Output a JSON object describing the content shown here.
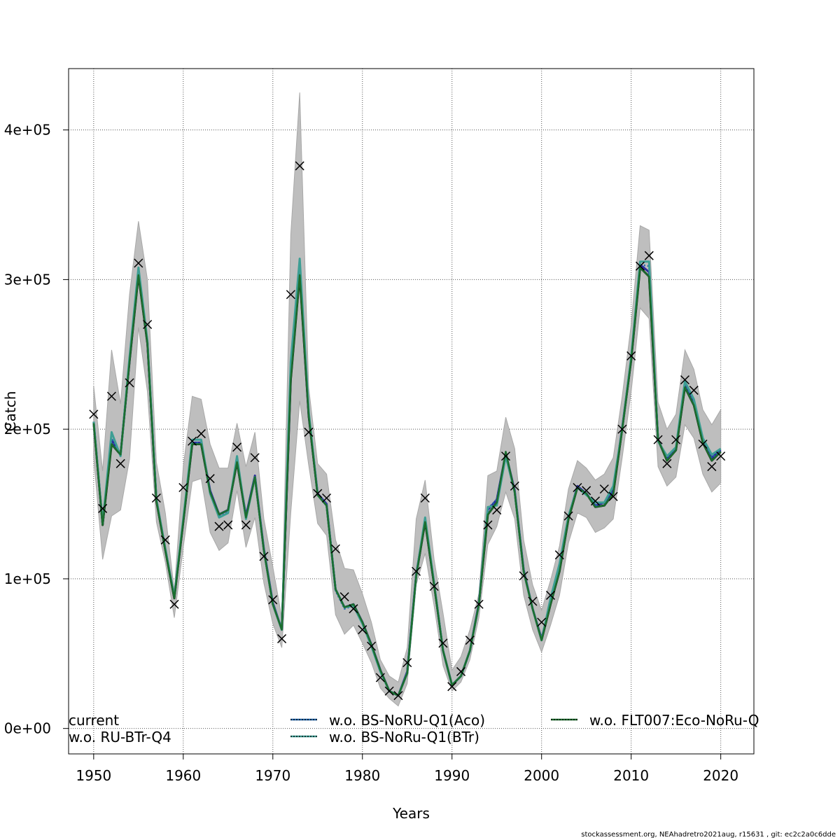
{
  "chart_data": {
    "type": "line",
    "xlabel": "Years",
    "ylabel": "Catch",
    "xlim": [
      1947.2,
      2023.7
    ],
    "ylim": [
      -17000,
      441000
    ],
    "x_ticks": [
      "1950",
      "1960",
      "1970",
      "1980",
      "1990",
      "2000",
      "2010",
      "2020"
    ],
    "y_ticks": [
      {
        "value": 0,
        "label": "0e+00"
      },
      {
        "value": 100000,
        "label": "1e+05"
      },
      {
        "value": 200000,
        "label": "2e+05"
      },
      {
        "value": 300000,
        "label": "3e+05"
      },
      {
        "value": 400000,
        "label": "4e+05"
      }
    ],
    "grid": true,
    "years": [
      1950,
      1951,
      1952,
      1953,
      1954,
      1955,
      1956,
      1957,
      1958,
      1959,
      1960,
      1961,
      1962,
      1963,
      1964,
      1965,
      1966,
      1967,
      1968,
      1969,
      1970,
      1971,
      1972,
      1973,
      1974,
      1975,
      1976,
      1977,
      1978,
      1979,
      1980,
      1981,
      1982,
      1983,
      1984,
      1985,
      1986,
      1987,
      1988,
      1989,
      1990,
      1991,
      1992,
      1993,
      1994,
      1995,
      1996,
      1997,
      1998,
      1999,
      2000,
      2001,
      2002,
      2003,
      2004,
      2005,
      2006,
      2007,
      2008,
      2009,
      2010,
      2011,
      2012,
      2013,
      2014,
      2015,
      2016,
      2017,
      2018,
      2019,
      2020
    ],
    "observed": [
      210000,
      147000,
      222000,
      177000,
      231000,
      311000,
      270000,
      154000,
      126000,
      83000,
      161000,
      192000,
      197000,
      167000,
      135000,
      136000,
      188000,
      136000,
      181000,
      115000,
      86000,
      60000,
      290000,
      376000,
      198000,
      157000,
      154000,
      120000,
      88000,
      80000,
      66000,
      55000,
      34000,
      25000,
      22000,
      44000,
      105000,
      154000,
      95000,
      57000,
      28000,
      38000,
      59000,
      83000,
      136000,
      146000,
      182000,
      162000,
      102000,
      85000,
      71000,
      89000,
      116000,
      142000,
      161000,
      159000,
      152000,
      160000,
      155000,
      200000,
      249000,
      309000,
      316000,
      193000,
      177000,
      193000,
      233000,
      226000,
      190000,
      175000,
      182000
    ],
    "band_upper": [
      229000,
      172000,
      253000,
      217000,
      290000,
      339000,
      300000,
      178000,
      144000,
      92000,
      175000,
      222000,
      220000,
      190000,
      174000,
      174000,
      204000,
      175000,
      198000,
      140000,
      108000,
      74000,
      330000,
      425000,
      228000,
      177000,
      170000,
      126000,
      107000,
      106000,
      90000,
      71000,
      46000,
      35000,
      31000,
      54000,
      140000,
      166000,
      113000,
      77000,
      39000,
      48000,
      66000,
      90000,
      169000,
      172000,
      208000,
      187000,
      126000,
      96000,
      79000,
      99000,
      122000,
      160000,
      179000,
      174000,
      166000,
      170000,
      181000,
      222000,
      270000,
      336000,
      333000,
      218000,
      200000,
      210000,
      253000,
      240000,
      213000,
      203000,
      213000
    ],
    "band_lower": [
      181000,
      113000,
      142000,
      146000,
      180000,
      268000,
      225000,
      138000,
      111000,
      74000,
      121000,
      165000,
      167000,
      131000,
      119000,
      124000,
      159000,
      121000,
      141000,
      97000,
      70000,
      54000,
      144000,
      219000,
      176000,
      137000,
      129000,
      76000,
      63000,
      69000,
      57000,
      44000,
      27000,
      20000,
      15000,
      30000,
      96000,
      117000,
      82000,
      42000,
      25000,
      31000,
      46000,
      74000,
      123000,
      135000,
      158000,
      140000,
      89000,
      66000,
      51000,
      69000,
      89000,
      124000,
      144000,
      141000,
      131000,
      134000,
      140000,
      181000,
      225000,
      281000,
      274000,
      175000,
      162000,
      168000,
      203000,
      194000,
      170000,
      158000,
      164000
    ],
    "series": [
      {
        "name": "current",
        "color": "#000000",
        "dash": "solid",
        "values": [
          204000,
          136000,
          190000,
          183000,
          245000,
          303000,
          257000,
          152000,
          119000,
          87000,
          138000,
          190000,
          190000,
          158000,
          143000,
          146000,
          178000,
          141000,
          168000,
          119000,
          83000,
          66000,
          233000,
          303000,
          209000,
          156000,
          149000,
          93000,
          81000,
          83000,
          71000,
          56000,
          39000,
          25000,
          22000,
          37000,
          102000,
          138000,
          96000,
          52000,
          29000,
          35000,
          52000,
          83000,
          143000,
          151000,
          183000,
          158000,
          105000,
          80000,
          59000,
          83000,
          105000,
          140000,
          161000,
          157000,
          148000,
          149000,
          157000,
          200000,
          246000,
          308000,
          302000,
          193000,
          179000,
          186000,
          228000,
          216000,
          191000,
          179000,
          185000
        ]
      },
      {
        "name": "w.o. RU-BTr-Q4",
        "color": "#2b2d9c",
        "dash": "solid",
        "values": [
          205000,
          137000,
          193000,
          183000,
          246000,
          305000,
          258000,
          153000,
          120000,
          88000,
          139000,
          191000,
          191000,
          159000,
          143000,
          146000,
          179000,
          142000,
          169000,
          120000,
          84000,
          66000,
          236000,
          306000,
          210000,
          157000,
          150000,
          93000,
          81000,
          83000,
          71000,
          56000,
          39000,
          25000,
          22000,
          38000,
          103000,
          139000,
          97000,
          52000,
          29000,
          35000,
          52000,
          84000,
          146000,
          153000,
          184000,
          159000,
          106000,
          80000,
          60000,
          84000,
          106000,
          141000,
          162000,
          157000,
          149000,
          151000,
          159000,
          201000,
          247000,
          310000,
          305000,
          193000,
          180000,
          187000,
          229000,
          218000,
          192000,
          181000,
          186000
        ]
      },
      {
        "name": "w.o. BS-NoRU-Q1(Aco)",
        "color": "#2166ac",
        "dash": "dotted",
        "values": [
          205000,
          136000,
          194000,
          182000,
          246000,
          306000,
          258000,
          153000,
          119000,
          88000,
          139000,
          191000,
          191000,
          158000,
          142000,
          145000,
          179000,
          141000,
          168000,
          119000,
          83000,
          66000,
          238000,
          309000,
          210000,
          156000,
          149000,
          92000,
          80000,
          82000,
          70000,
          55000,
          38000,
          25000,
          22000,
          37000,
          102000,
          139000,
          96000,
          52000,
          29000,
          35000,
          52000,
          83000,
          147000,
          153000,
          183000,
          158000,
          105000,
          80000,
          59000,
          84000,
          106000,
          141000,
          161000,
          157000,
          149000,
          151000,
          160000,
          200000,
          247000,
          310000,
          309000,
          192000,
          180000,
          186000,
          230000,
          218000,
          192000,
          181000,
          186000
        ]
      },
      {
        "name": "w.o. BS-NoRu-Q1(BTr)",
        "color": "#3d9e94",
        "dash": "solid",
        "values": [
          205000,
          137000,
          198000,
          182000,
          248000,
          308000,
          259000,
          153000,
          120000,
          88000,
          140000,
          193000,
          193000,
          157000,
          141000,
          144000,
          182000,
          140000,
          168000,
          119000,
          83000,
          66000,
          245000,
          314000,
          212000,
          156000,
          149000,
          93000,
          81000,
          82000,
          70000,
          55000,
          38000,
          25000,
          22000,
          37000,
          102000,
          141000,
          97000,
          52000,
          29000,
          35000,
          52000,
          83000,
          148000,
          149000,
          182000,
          158000,
          105000,
          80000,
          59000,
          87000,
          110000,
          142000,
          161000,
          156000,
          151000,
          151000,
          162000,
          200000,
          248000,
          312000,
          312000,
          192000,
          182000,
          188000,
          232000,
          220000,
          194000,
          183000,
          187000
        ]
      },
      {
        "name": "w.o. FLT007:Eco-NoRu-Q",
        "color": "#1b6e2e",
        "dash": "solid",
        "values": [
          204000,
          136000,
          190000,
          183000,
          245000,
          303000,
          257000,
          152000,
          119000,
          87000,
          138000,
          190000,
          190000,
          158000,
          143000,
          146000,
          178000,
          141000,
          168000,
          119000,
          83000,
          66000,
          233000,
          303000,
          209000,
          156000,
          149000,
          93000,
          81000,
          83000,
          71000,
          56000,
          39000,
          25000,
          22000,
          37000,
          102000,
          138000,
          96000,
          52000,
          29000,
          35000,
          52000,
          83000,
          143000,
          151000,
          185000,
          158000,
          105000,
          80000,
          59000,
          83000,
          105000,
          140000,
          161000,
          157000,
          148000,
          149000,
          157000,
          200000,
          246000,
          308000,
          302000,
          193000,
          179000,
          186000,
          228000,
          216000,
          191000,
          179000,
          185000
        ]
      }
    ],
    "legend": {
      "placement": "bottom",
      "columns": [
        [
          {
            "label": "current",
            "symbol": "none"
          },
          {
            "label": "w.o. RU-BTr-Q4",
            "symbol": "none"
          }
        ],
        [
          {
            "label": "w.o. BS-NoRU-Q1(Aco)",
            "symbol": "line"
          },
          {
            "label": "w.o. BS-NoRu-Q1(BTr)",
            "symbol": "line"
          }
        ],
        [
          {
            "label": "w.o. FLT007:Eco-NoRu-Q",
            "symbol": "line"
          }
        ]
      ]
    },
    "band_color": "#bebebe",
    "marker": "x"
  },
  "footer_text": "stockassessment.org, NEAhadretro2021aug, r15631 , git: ec2c2a0c6dde"
}
